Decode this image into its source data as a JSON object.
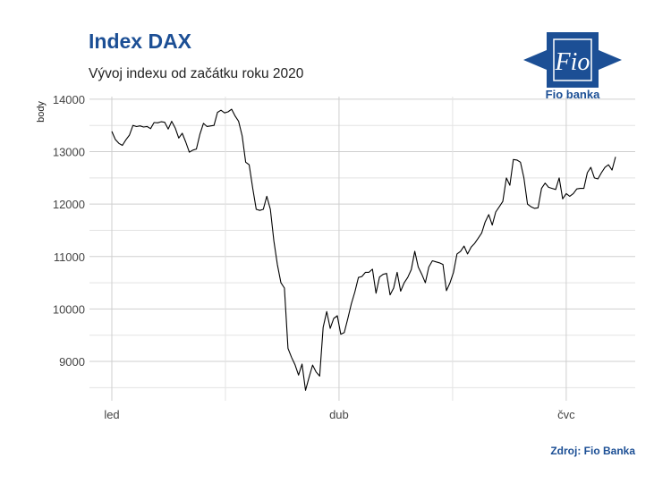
{
  "title": "Index DAX",
  "subtitle": "Vývoj indexu od začátku roku 2020",
  "source": "Zdroj: Fio Banka",
  "logo": {
    "text": "Fio banka",
    "emblem_text": "Fio"
  },
  "colors": {
    "title": "#1c4f95",
    "line": "#000000",
    "grid": "#cccccc"
  },
  "chart_data": {
    "type": "line",
    "ylabel": "body",
    "xlabel": "",
    "ylim": [
      8250,
      14050
    ],
    "yticks": [
      9000,
      10000,
      11000,
      12000,
      13000,
      14000
    ],
    "xtick_labels": [
      "led",
      "dub",
      "čvc"
    ],
    "xtick_positions": [
      0,
      64.5,
      129
    ],
    "grid": true,
    "series": [
      {
        "values": [
          13386,
          13233,
          13158,
          13120,
          13226,
          13317,
          13500,
          13478,
          13493,
          13470,
          13480,
          13440,
          13555,
          13550,
          13570,
          13560,
          13430,
          13580,
          13450,
          13260,
          13350,
          13180,
          12990,
          13030,
          13050,
          13330,
          13540,
          13480,
          13490,
          13500,
          13750,
          13790,
          13740,
          13760,
          13810,
          13680,
          13580,
          13300,
          12800,
          12750,
          12300,
          11900,
          11880,
          11900,
          12150,
          11900,
          11300,
          10850,
          10500,
          10400,
          9250,
          9080,
          8940,
          8740,
          8950,
          8450,
          8700,
          8930,
          8800,
          8720,
          9650,
          9950,
          9630,
          9820,
          9870,
          9520,
          9550,
          9820,
          10100,
          10330,
          10600,
          10620,
          10700,
          10700,
          10760,
          10300,
          10610,
          10660,
          10680,
          10270,
          10400,
          10700,
          10340,
          10500,
          10600,
          10750,
          11100,
          10800,
          10660,
          10500,
          10800,
          10920,
          10900,
          10880,
          10850,
          10350,
          10500,
          10700,
          11050,
          11100,
          11200,
          11050,
          11180,
          11250,
          11350,
          11450,
          11660,
          11800,
          11600,
          11850,
          11950,
          12050,
          12500,
          12360,
          12850,
          12840,
          12800,
          12500,
          12000,
          11950,
          11920,
          11930,
          12300,
          12400,
          12320,
          12300,
          12280,
          12500,
          12100,
          12200,
          12150,
          12200,
          12290,
          12300,
          12300,
          12600,
          12700,
          12500,
          12480,
          12600,
          12700,
          12750,
          12650,
          12900
        ]
      }
    ]
  }
}
